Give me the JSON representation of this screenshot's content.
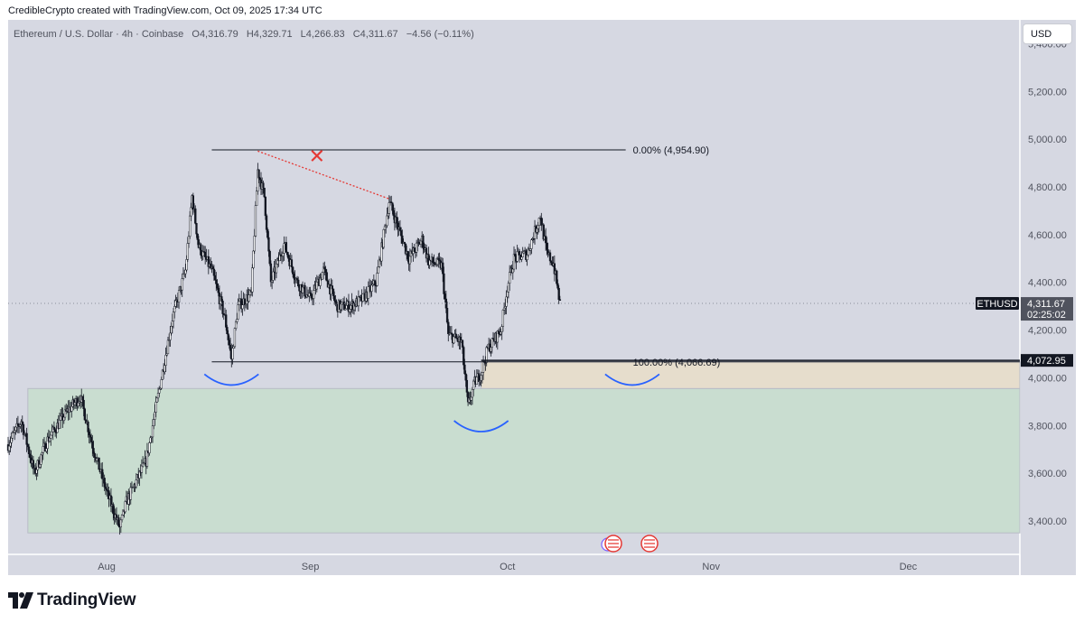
{
  "caption": "CredibleCrypto created with TradingView.com, Oct 09, 2025 17:34 UTC",
  "currency_button": "USD",
  "logo_text": "TradingView",
  "chart_data": {
    "type": "candlestick",
    "symbol_line": {
      "name": "Ethereum / U.S. Dollar · 4h · Coinbase",
      "open_label": "O",
      "open": "4,316.79",
      "high_label": "H",
      "high": "4,329.71",
      "low_label": "L",
      "low": "4,266.83",
      "close_label": "C",
      "close": "4,311.67",
      "change": "−4.56 (−0.11%)"
    },
    "y_axis": {
      "ticks": [
        3400,
        3600,
        3800,
        4000,
        4200,
        4400,
        4600,
        4800,
        5000,
        5200,
        5400
      ],
      "tick_labels": [
        "3,400.00",
        "3,600.00",
        "3,800.00",
        "4,000.00",
        "4,200.00",
        "4,400.00",
        "4,600.00",
        "4,800.00",
        "5,000.00",
        "5,200.00",
        "5,400.00"
      ],
      "range": [
        3260,
        5500
      ]
    },
    "x_axis": {
      "labels": [
        "Aug",
        "Sep",
        "Oct",
        "Nov",
        "Dec"
      ],
      "range": [
        "2025-07-17",
        "2025-12-18"
      ]
    },
    "key_points": [
      {
        "date": "2025-07-17",
        "price": 3720
      },
      {
        "date": "2025-07-19",
        "price": 3820
      },
      {
        "date": "2025-07-21",
        "price": 3600
      },
      {
        "date": "2025-07-23",
        "price": 3740
      },
      {
        "date": "2025-07-26",
        "price": 3860
      },
      {
        "date": "2025-07-28",
        "price": 3920
      },
      {
        "date": "2025-07-30",
        "price": 3700
      },
      {
        "date": "2025-08-01",
        "price": 3520
      },
      {
        "date": "2025-08-03",
        "price": 3370
      },
      {
        "date": "2025-08-04",
        "price": 3480
      },
      {
        "date": "2025-08-07",
        "price": 3650
      },
      {
        "date": "2025-08-09",
        "price": 3950
      },
      {
        "date": "2025-08-11",
        "price": 4250
      },
      {
        "date": "2025-08-13",
        "price": 4450
      },
      {
        "date": "2025-08-14",
        "price": 4760
      },
      {
        "date": "2025-08-15",
        "price": 4550
      },
      {
        "date": "2025-08-17",
        "price": 4450
      },
      {
        "date": "2025-08-19",
        "price": 4250
      },
      {
        "date": "2025-08-20",
        "price": 4080
      },
      {
        "date": "2025-08-21",
        "price": 4300
      },
      {
        "date": "2025-08-23",
        "price": 4350
      },
      {
        "date": "2025-08-24",
        "price": 4870
      },
      {
        "date": "2025-08-25",
        "price": 4760
      },
      {
        "date": "2025-08-26",
        "price": 4400
      },
      {
        "date": "2025-08-28",
        "price": 4560
      },
      {
        "date": "2025-08-30",
        "price": 4400
      },
      {
        "date": "2025-09-01",
        "price": 4330
      },
      {
        "date": "2025-09-03",
        "price": 4450
      },
      {
        "date": "2025-09-05",
        "price": 4300
      },
      {
        "date": "2025-09-07",
        "price": 4300
      },
      {
        "date": "2025-09-09",
        "price": 4330
      },
      {
        "date": "2025-09-11",
        "price": 4400
      },
      {
        "date": "2025-09-13",
        "price": 4740
      },
      {
        "date": "2025-09-14",
        "price": 4660
      },
      {
        "date": "2025-09-16",
        "price": 4500
      },
      {
        "date": "2025-09-18",
        "price": 4580
      },
      {
        "date": "2025-09-19",
        "price": 4490
      },
      {
        "date": "2025-09-21",
        "price": 4470
      },
      {
        "date": "2025-09-22",
        "price": 4180
      },
      {
        "date": "2025-09-24",
        "price": 4150
      },
      {
        "date": "2025-09-25",
        "price": 3880
      },
      {
        "date": "2025-09-26",
        "price": 3980
      },
      {
        "date": "2025-09-27",
        "price": 4020
      },
      {
        "date": "2025-09-28",
        "price": 4120
      },
      {
        "date": "2025-09-30",
        "price": 4200
      },
      {
        "date": "2025-10-01",
        "price": 4380
      },
      {
        "date": "2025-10-02",
        "price": 4500
      },
      {
        "date": "2025-10-04",
        "price": 4520
      },
      {
        "date": "2025-10-06",
        "price": 4680
      },
      {
        "date": "2025-10-07",
        "price": 4520
      },
      {
        "date": "2025-10-08",
        "price": 4480
      },
      {
        "date": "2025-10-09",
        "price": 4311.67
      }
    ],
    "last_price_label": "4,311.67",
    "countdown": "02:25:02",
    "ticker_tag": "ETHUSD",
    "drawn_level": 4072.95,
    "drawn_level_label": "4,072.95",
    "fib": {
      "top_label": "0.00% (4,954.90)",
      "bottom_label": "100.00% (4,066.69)",
      "top": 4954.9,
      "bottom": 4066.69
    },
    "zones": [
      {
        "type": "demand",
        "color": "#c9ddd0",
        "top": 3955,
        "bottom": 3350,
        "start": "2025-07-20",
        "end": "2025-12-18"
      },
      {
        "type": "supply",
        "color": "#e6ddcc",
        "top": 4066.69,
        "bottom": 3955,
        "start": "2025-09-27",
        "end": "2025-12-18"
      }
    ],
    "x_mark": "✕",
    "colors": {
      "background": "#d6d8e2",
      "candle_up": "#131722",
      "candle_down": "#131722",
      "curve": "#2962ff",
      "x_mark": "#e53935",
      "dotted_trend": "#e53935"
    }
  }
}
